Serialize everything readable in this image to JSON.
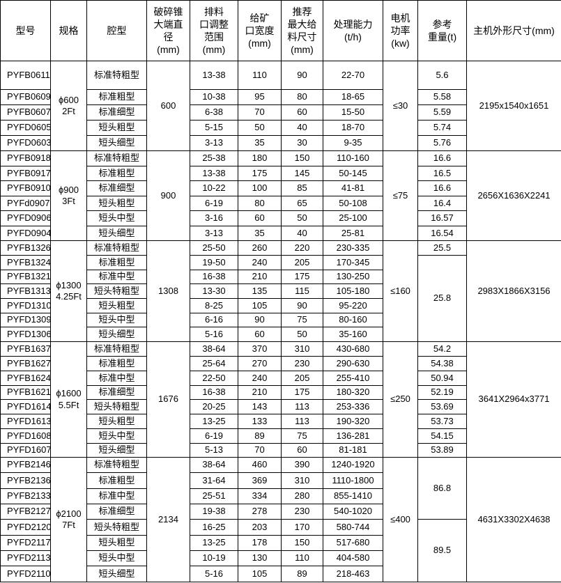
{
  "table": {
    "columns": [
      {
        "id": "model",
        "label": "型号"
      },
      {
        "id": "spec",
        "label": "规格"
      },
      {
        "id": "cavity",
        "label": "腔型"
      },
      {
        "id": "diameter",
        "label": "破碎锥\n大端直\n径\n(mm)"
      },
      {
        "id": "range",
        "label": "排料\n口调整\n范围\n(mm)"
      },
      {
        "id": "width",
        "label": "给矿\n口宽度\n(mm)"
      },
      {
        "id": "feed",
        "label": "推荐\n最大给\n料尺寸\n(mm)"
      },
      {
        "id": "capacity",
        "label": "处理能力\n(t/h)"
      },
      {
        "id": "power",
        "label": "电机\n功率\n(kw)"
      },
      {
        "id": "weight",
        "label": "参考\n重量(t)"
      },
      {
        "id": "dims",
        "label": "主机外形尺寸(mm)"
      }
    ],
    "groups": [
      {
        "spec": "ϕ600\n2Ft",
        "diameter": "600",
        "power": "≤30",
        "dims": "2195x1540x1651",
        "rows": [
          {
            "model": "PYFB0611",
            "cavity": "标准特粗型",
            "range": "13-38",
            "width": "110",
            "feed": "90",
            "capacity": "22-70",
            "weight": "5.6"
          },
          {
            "model": "PYFB0609",
            "cavity": "标准粗型",
            "range": "10-38",
            "width": "95",
            "feed": "80",
            "capacity": "18-65",
            "weight": "5.58"
          },
          {
            "model": "PYFB0607",
            "cavity": "标准细型",
            "range": "6-38",
            "width": "70",
            "feed": "60",
            "capacity": "15-50",
            "weight": "5.59"
          },
          {
            "model": "PYFD0605",
            "cavity": "短头粗型",
            "range": "5-15",
            "width": "50",
            "feed": "40",
            "capacity": "18-70",
            "weight": "5.74"
          },
          {
            "model": "PYFD0603",
            "cavity": "短头细型",
            "range": "3-13",
            "width": "35",
            "feed": "30",
            "capacity": "9-35",
            "weight": "5.76"
          }
        ]
      },
      {
        "spec": "ϕ900\n3Ft",
        "diameter": "900",
        "power": "≤75",
        "dims": "2656X1636X2241",
        "rows": [
          {
            "model": "PYFB0918",
            "cavity": "标准特粗型",
            "range": "25-38",
            "width": "180",
            "feed": "150",
            "capacity": "110-160",
            "weight": "16.6"
          },
          {
            "model": "PYFB0917",
            "cavity": "标准粗型",
            "range": "13-38",
            "width": "175",
            "feed": "145",
            "capacity": "50-145",
            "weight": "16.5"
          },
          {
            "model": "PYFB0910",
            "cavity": "标准细型",
            "range": "10-22",
            "width": "100",
            "feed": "85",
            "capacity": "41-81",
            "weight": "16.6"
          },
          {
            "model": "PYFd0907",
            "cavity": "短头粗型",
            "range": "6-19",
            "width": "80",
            "feed": "65",
            "capacity": "50-108",
            "weight": "16.4"
          },
          {
            "model": "PYFD0906",
            "cavity": "短头中型",
            "range": "3-16",
            "width": "60",
            "feed": "50",
            "capacity": "25-100",
            "weight": "16.57"
          },
          {
            "model": "PYFD0904",
            "cavity": "短头细型",
            "range": "3-13",
            "width": "35",
            "feed": "40",
            "capacity": "25-81",
            "weight": "16.54"
          }
        ]
      },
      {
        "spec": "ϕ1300\n4.25Ft",
        "diameter": "1308",
        "power": "≤160",
        "dims": "2983X1866X3156",
        "rows": [
          {
            "model": "PYFB1326",
            "cavity": "标准特粗型",
            "range": "25-50",
            "width": "260",
            "feed": "220",
            "capacity": "230-335",
            "weight": "25.5"
          },
          {
            "model": "PYFB1324",
            "cavity": "标准粗型",
            "range": "19-50",
            "width": "240",
            "feed": "205",
            "capacity": "170-345",
            "weight": "25.8",
            "weight_span": 6
          },
          {
            "model": "PYFB1321",
            "cavity": "标准中型",
            "range": "16-38",
            "width": "210",
            "feed": "175",
            "capacity": "130-250"
          },
          {
            "model": "PYFB1313",
            "cavity": "短头特粗型",
            "range": "13-30",
            "width": "135",
            "feed": "115",
            "capacity": "105-180"
          },
          {
            "model": "PYFD1310",
            "cavity": "短头粗型",
            "range": "8-25",
            "width": "105",
            "feed": "90",
            "capacity": "95-220"
          },
          {
            "model": "PYFD1309",
            "cavity": "短头中型",
            "range": "6-16",
            "width": "90",
            "feed": "75",
            "capacity": "80-160"
          },
          {
            "model": "PYFD1306",
            "cavity": "短头细型",
            "range": "5-16",
            "width": "60",
            "feed": "50",
            "capacity": "35-160"
          }
        ]
      },
      {
        "spec": "ϕ1600\n5.5Ft",
        "diameter": "1676",
        "power": "≤250",
        "dims": "3641X2964x3771",
        "rows": [
          {
            "model": "PYFB1637",
            "cavity": "标准特粗型",
            "range": "38-64",
            "width": "370",
            "feed": "310",
            "capacity": "430-680",
            "weight": "54.2"
          },
          {
            "model": "PYFB1627",
            "cavity": "标准粗型",
            "range": "25-64",
            "width": "270",
            "feed": "230",
            "capacity": "290-630",
            "weight": "54.38"
          },
          {
            "model": "PYFB1624",
            "cavity": "标准中型",
            "range": "22-50",
            "width": "240",
            "feed": "205",
            "capacity": "255-410",
            "weight": "50.94"
          },
          {
            "model": "PYFB1621",
            "cavity": "标准细型",
            "range": "16-38",
            "width": "210",
            "feed": "175",
            "capacity": "180-320",
            "weight": "52.19"
          },
          {
            "model": "PYFD1614",
            "cavity": "短头特粗型",
            "range": "20-25",
            "width": "143",
            "feed": "113",
            "capacity": "253-336",
            "weight": "53.69"
          },
          {
            "model": "PYFD1613",
            "cavity": "短头粗型",
            "range": "13-25",
            "width": "133",
            "feed": "113",
            "capacity": "190-320",
            "weight": "53.73"
          },
          {
            "model": "PYFD1608",
            "cavity": "短头中型",
            "range": "6-19",
            "width": "89",
            "feed": "75",
            "capacity": "136-281",
            "weight": "54.15"
          },
          {
            "model": "PYFD1607",
            "cavity": "短头细型",
            "range": "5-13",
            "width": "70",
            "feed": "60",
            "capacity": "81-181",
            "weight": "53.89"
          }
        ]
      },
      {
        "spec": "ϕ2100\n7Ft",
        "diameter": "2134",
        "power": "≤400",
        "dims": "4631X3302X4638",
        "rows": [
          {
            "model": "PYFB2146",
            "cavity": "标准特粗型",
            "range": "38-64",
            "width": "460",
            "feed": "390",
            "capacity": "1240-1920",
            "weight": "86.8",
            "weight_span": 4
          },
          {
            "model": "PYFB2136",
            "cavity": "标准粗型",
            "range": "31-64",
            "width": "369",
            "feed": "310",
            "capacity": "1110-1800"
          },
          {
            "model": "PYFB2133",
            "cavity": "标准中型",
            "range": "25-51",
            "width": "334",
            "feed": "280",
            "capacity": "855-1410"
          },
          {
            "model": "PYFB2127",
            "cavity": "标准细型",
            "range": "19-38",
            "width": "278",
            "feed": "230",
            "capacity": "540-1020"
          },
          {
            "model": "PYFD2120",
            "cavity": "短头特粗型",
            "range": "16-25",
            "width": "203",
            "feed": "170",
            "capacity": "580-744",
            "weight": "89.5",
            "weight_span": 4
          },
          {
            "model": "PYFD2117",
            "cavity": "短头粗型",
            "range": "13-25",
            "width": "178",
            "feed": "150",
            "capacity": "517-680"
          },
          {
            "model": "PYFD2113",
            "cavity": "短头中型",
            "range": "10-19",
            "width": "130",
            "feed": "110",
            "capacity": "404-580"
          },
          {
            "model": "PYFD2110",
            "cavity": "短头细型",
            "range": "5-16",
            "width": "105",
            "feed": "89",
            "capacity": "218-463"
          }
        ]
      }
    ]
  }
}
